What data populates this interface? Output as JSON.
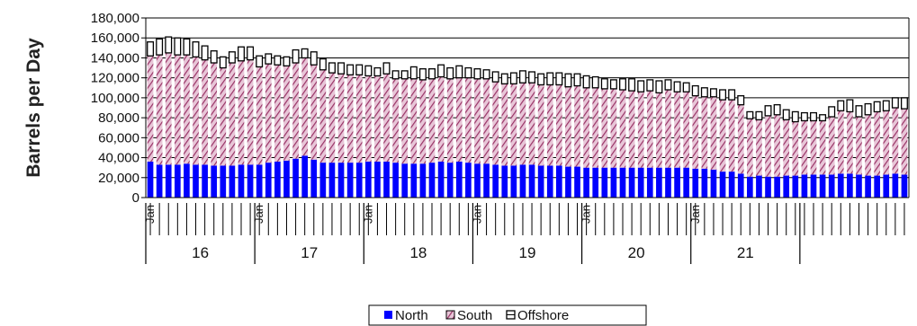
{
  "chart_data": {
    "type": "bar",
    "stacked": true,
    "ylabel": "Barrels per Day",
    "xlabel": "",
    "ylim": [
      0,
      180000
    ],
    "yticks": [
      0,
      20000,
      40000,
      60000,
      80000,
      100000,
      120000,
      140000,
      160000,
      180000
    ],
    "ytick_labels": [
      "0",
      "20,000",
      "40,000",
      "60,000",
      "80,000",
      "100,000",
      "120,000",
      "140,000",
      "160,000",
      "180,000"
    ],
    "grid": "horizontal",
    "legend_position": "bottom",
    "month_label": "Jan",
    "years": [
      "16",
      "17",
      "18",
      "19",
      "20",
      "21"
    ],
    "series": [
      {
        "name": "North",
        "color": "#0000ff",
        "values": [
          36000,
          33000,
          33000,
          33000,
          34000,
          33000,
          33000,
          32000,
          32000,
          32000,
          33000,
          33000,
          33000,
          35000,
          36000,
          37000,
          39000,
          42000,
          38000,
          35000,
          35000,
          35000,
          35000,
          35000,
          36000,
          36000,
          36000,
          35000,
          34000,
          34000,
          34000,
          35000,
          36000,
          35000,
          36000,
          35000,
          34000,
          34000,
          33000,
          32000,
          32000,
          33000,
          33000,
          32000,
          32000,
          32000,
          31000,
          31000,
          30000,
          30000,
          30000,
          30000,
          30000,
          30000,
          30000,
          30000,
          30000,
          30000,
          30000,
          30000,
          29000,
          29000,
          28000,
          26000,
          26000,
          24000,
          21000,
          22000,
          21000,
          21000,
          22000,
          22000,
          23000,
          23000,
          23000,
          23000,
          24000,
          24000,
          23000,
          22000,
          22000,
          23000,
          24000,
          23000
        ]
      },
      {
        "name": "South",
        "color": "#993366",
        "values": [
          106000,
          110000,
          112000,
          110000,
          109000,
          108000,
          105000,
          103000,
          98000,
          103000,
          104000,
          105000,
          98000,
          99000,
          97000,
          95000,
          96000,
          98000,
          95000,
          93000,
          90000,
          89000,
          88000,
          88000,
          86000,
          86000,
          88000,
          84000,
          85000,
          85000,
          84000,
          84000,
          85000,
          84000,
          84000,
          85000,
          85000,
          85000,
          83000,
          82000,
          82000,
          82000,
          82000,
          81000,
          81000,
          81000,
          80000,
          81000,
          80000,
          80000,
          79000,
          79000,
          78000,
          77000,
          76000,
          77000,
          75000,
          78000,
          76000,
          76000,
          73000,
          72000,
          73000,
          72000,
          72000,
          69000,
          58000,
          56000,
          61000,
          62000,
          56000,
          54000,
          54000,
          54000,
          54000,
          58000,
          63000,
          62000,
          58000,
          61000,
          64000,
          64000,
          66000,
          66000
        ]
      },
      {
        "name": "Offshore",
        "color": "#ffffff",
        "values": [
          14000,
          16000,
          16000,
          17000,
          16000,
          15000,
          14000,
          12000,
          11000,
          11000,
          14000,
          13000,
          11000,
          10000,
          9000,
          9000,
          13000,
          9000,
          13000,
          11000,
          10000,
          11000,
          10000,
          10000,
          10000,
          8000,
          11000,
          8000,
          8000,
          12000,
          11000,
          10000,
          12000,
          11000,
          12000,
          10000,
          10000,
          9000,
          10000,
          10000,
          11000,
          12000,
          11000,
          11000,
          12000,
          12000,
          13000,
          12000,
          12000,
          11000,
          10000,
          9000,
          11000,
          12000,
          11000,
          11000,
          12000,
          10000,
          10000,
          9000,
          10000,
          9000,
          8000,
          10000,
          10000,
          9000,
          7000,
          8000,
          10000,
          10000,
          10000,
          10000,
          8000,
          8000,
          6000,
          10000,
          10000,
          12000,
          11000,
          11000,
          10000,
          10000,
          10000,
          11000
        ]
      }
    ]
  }
}
